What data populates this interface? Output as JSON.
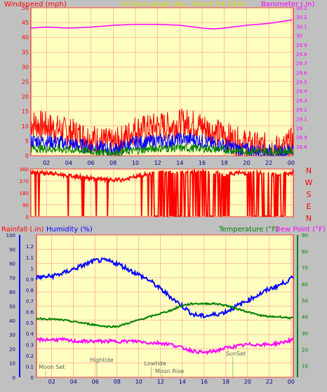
{
  "header": {
    "left_label": "Windspeed (mph)",
    "title": "24 hour graph day : March 24 2018",
    "right_label": "Barometer (.in)"
  },
  "colors": {
    "background": "#c0c0c0",
    "plot_bg": "#ffffc0",
    "grid": "#ff8080",
    "red": "#ff0000",
    "blue": "#0000ff",
    "green": "#008000",
    "magenta": "#ff00ff",
    "yellow_text": "#e0e000",
    "navy": "#000080"
  },
  "chart_data": [
    {
      "type": "line",
      "name": "wind_barometer",
      "title": "24 hour graph day : March 24 2018",
      "ylabel": "Windspeed (mph)",
      "y2label": "Barometer (.in)",
      "ylim": [
        0,
        50
      ],
      "y2lim": [
        28.7,
        30.3
      ],
      "yticks": [
        "0",
        "5",
        "10",
        "15",
        "20",
        "25",
        "30",
        "35",
        "40",
        "45",
        "50"
      ],
      "y2ticks": [
        "28.8",
        "28.9",
        "29",
        "29.1",
        "29.2",
        "29.3",
        "29.4",
        "29.5",
        "29.6",
        "29.7",
        "29.8",
        "29.9",
        "30",
        "30.1",
        "30.2",
        "30.3"
      ],
      "x": [
        "02",
        "04",
        "06",
        "08",
        "10",
        "12",
        "14",
        "16",
        "18",
        "20",
        "22",
        "00"
      ],
      "x_hours_range": [
        0.6,
        24.2
      ],
      "series": [
        {
          "name": "gust",
          "color": "red",
          "axis": "left",
          "points": [
            [
              0.6,
              11
            ],
            [
              2,
              10
            ],
            [
              3,
              9
            ],
            [
              4,
              8
            ],
            [
              5,
              7
            ],
            [
              6,
              6
            ],
            [
              7,
              5
            ],
            [
              8,
              4
            ],
            [
              9,
              6
            ],
            [
              10,
              9
            ],
            [
              11,
              9
            ],
            [
              12,
              10
            ],
            [
              13,
              10
            ],
            [
              14,
              11
            ],
            [
              15,
              11
            ],
            [
              16,
              10
            ],
            [
              17,
              8
            ],
            [
              18,
              7
            ],
            [
              19,
              5
            ],
            [
              20,
              4
            ],
            [
              21,
              3
            ],
            [
              22,
              3
            ],
            [
              23,
              2
            ],
            [
              24.2,
              5
            ]
          ]
        },
        {
          "name": "wind_speed",
          "color": "blue",
          "axis": "left",
          "points": [
            [
              0.6,
              5
            ],
            [
              2,
              5
            ],
            [
              3,
              4.5
            ],
            [
              4,
              4
            ],
            [
              5,
              3.5
            ],
            [
              6,
              3
            ],
            [
              7,
              2.5
            ],
            [
              8,
              2
            ],
            [
              9,
              3
            ],
            [
              10,
              4.5
            ],
            [
              11,
              4.5
            ],
            [
              12,
              5
            ],
            [
              13,
              5
            ],
            [
              14,
              5.5
            ],
            [
              15,
              5.5
            ],
            [
              16,
              5
            ],
            [
              17,
              4
            ],
            [
              18,
              3.5
            ],
            [
              19,
              2.5
            ],
            [
              20,
              2
            ],
            [
              21,
              1.5
            ],
            [
              22,
              1.5
            ],
            [
              23,
              1
            ],
            [
              24.2,
              2.5
            ]
          ]
        },
        {
          "name": "wind_avg",
          "color": "green",
          "axis": "left",
          "points": [
            [
              0.6,
              2.5
            ],
            [
              4,
              2
            ],
            [
              8,
              1
            ],
            [
              12,
              2.5
            ],
            [
              16,
              2.5
            ],
            [
              20,
              1.5
            ],
            [
              24.2,
              1.5
            ]
          ]
        },
        {
          "name": "barometer",
          "color": "magenta",
          "axis": "right",
          "points": [
            [
              0.6,
              30.08
            ],
            [
              2,
              30.09
            ],
            [
              4,
              30.08
            ],
            [
              6,
              30.09
            ],
            [
              8,
              30.11
            ],
            [
              10,
              30.12
            ],
            [
              12,
              30.12
            ],
            [
              14,
              30.11
            ],
            [
              16,
              30.08
            ],
            [
              17,
              30.07
            ],
            [
              18,
              30.08
            ],
            [
              20,
              30.11
            ],
            [
              22,
              30.13
            ],
            [
              24.2,
              30.17
            ]
          ]
        }
      ]
    },
    {
      "type": "scatter",
      "name": "wind_direction",
      "ylabel": "",
      "ylim": [
        0,
        360
      ],
      "yticks": [
        "0",
        "90",
        "180",
        "270",
        "360"
      ],
      "direction_labels": [
        "N",
        "W",
        "S",
        "E",
        "N"
      ],
      "series": [
        {
          "name": "direction",
          "color": "red",
          "points": [
            [
              0.6,
              340
            ],
            [
              2,
              330
            ],
            [
              3,
              320
            ],
            [
              5,
              300
            ],
            [
              6,
              290
            ],
            [
              7,
              280
            ],
            [
              8,
              275
            ],
            [
              9,
              280
            ],
            [
              10,
              300
            ],
            [
              11,
              320
            ],
            [
              12,
              330
            ],
            [
              13,
              340
            ],
            [
              14,
              330
            ],
            [
              15,
              340
            ],
            [
              16,
              340
            ],
            [
              17,
              330
            ],
            [
              18,
              320
            ],
            [
              19,
              330
            ],
            [
              20,
              330
            ],
            [
              21,
              330
            ],
            [
              22,
              330
            ],
            [
              23,
              320
            ],
            [
              24.2,
              330
            ]
          ]
        }
      ]
    },
    {
      "type": "line",
      "name": "rain_humidity_temperature",
      "ylabel": "Rainfall (.in)",
      "ylabel2": "Humidity (%)",
      "y2label": "Temperature (°F)",
      "y2label2": "Dew Point (°F)",
      "ylim": [
        0,
        100
      ],
      "yticks_humidity": [
        "0",
        "10",
        "20",
        "30",
        "40",
        "50",
        "60",
        "70",
        "80",
        "90",
        "100"
      ],
      "yticks_rain": [
        "0",
        "0.1",
        "0.2",
        "0.3",
        "0.4",
        "0.5",
        "0.6",
        "0.7",
        "0.8",
        "0.9",
        "1",
        "1.1",
        "1.2"
      ],
      "y2lim": [
        0,
        90
      ],
      "y2ticks": [
        "10",
        "20",
        "30",
        "40",
        "50",
        "60",
        "70",
        "80",
        "90"
      ],
      "x": [
        "02",
        "04",
        "06",
        "08",
        "10",
        "12",
        "14",
        "16",
        "18",
        "20",
        "22",
        "00"
      ],
      "annotations": [
        "Moon Set",
        "Hightide",
        "Lowtide",
        "Moon Rise",
        "SunSet"
      ],
      "series": [
        {
          "name": "humidity",
          "color": "blue",
          "axis": "left",
          "points": [
            [
              0.6,
              70
            ],
            [
              2,
              71
            ],
            [
              3,
              73
            ],
            [
              4,
              76
            ],
            [
              5,
              79
            ],
            [
              6,
              82
            ],
            [
              7,
              82
            ],
            [
              8,
              80
            ],
            [
              9,
              76
            ],
            [
              10,
              72
            ],
            [
              11,
              68
            ],
            [
              12,
              62
            ],
            [
              13,
              56
            ],
            [
              14,
              50
            ],
            [
              15,
              44
            ],
            [
              16,
              43
            ],
            [
              17,
              44
            ],
            [
              18,
              46
            ],
            [
              19,
              50
            ],
            [
              20,
              54
            ],
            [
              21,
              58
            ],
            [
              22,
              62
            ],
            [
              23,
              65
            ],
            [
              24.2,
              70
            ]
          ]
        },
        {
          "name": "temperature",
          "color": "green",
          "axis": "right",
          "points": [
            [
              0.6,
              39
            ],
            [
              2,
              38.5
            ],
            [
              3,
              38
            ],
            [
              4,
              37
            ],
            [
              5,
              36
            ],
            [
              6,
              35
            ],
            [
              7,
              34
            ],
            [
              8,
              34
            ],
            [
              9,
              36
            ],
            [
              10,
              38
            ],
            [
              11,
              40
            ],
            [
              12,
              42
            ],
            [
              13,
              44
            ],
            [
              14,
              47
            ],
            [
              15,
              48
            ],
            [
              16,
              48
            ],
            [
              17,
              48
            ],
            [
              18,
              47
            ],
            [
              19,
              45
            ],
            [
              20,
              43
            ],
            [
              21,
              41
            ],
            [
              22,
              40
            ],
            [
              23,
              40
            ],
            [
              24.2,
              39
            ]
          ]
        },
        {
          "name": "dew_point",
          "color": "magenta",
          "axis": "right",
          "points": [
            [
              0.6,
              26
            ],
            [
              2,
              26
            ],
            [
              3,
              26
            ],
            [
              4,
              25
            ],
            [
              5,
              25
            ],
            [
              6,
              25
            ],
            [
              7,
              25
            ],
            [
              8,
              25
            ],
            [
              9,
              25
            ],
            [
              10,
              25
            ],
            [
              11,
              24
            ],
            [
              12,
              24
            ],
            [
              13,
              23
            ],
            [
              14,
              21
            ],
            [
              15,
              19
            ],
            [
              16,
              18
            ],
            [
              17,
              19
            ],
            [
              18,
              21
            ],
            [
              19,
              22
            ],
            [
              20,
              23
            ],
            [
              21,
              23
            ],
            [
              22,
              23
            ],
            [
              23,
              24
            ],
            [
              24.2,
              26
            ]
          ]
        }
      ]
    }
  ]
}
